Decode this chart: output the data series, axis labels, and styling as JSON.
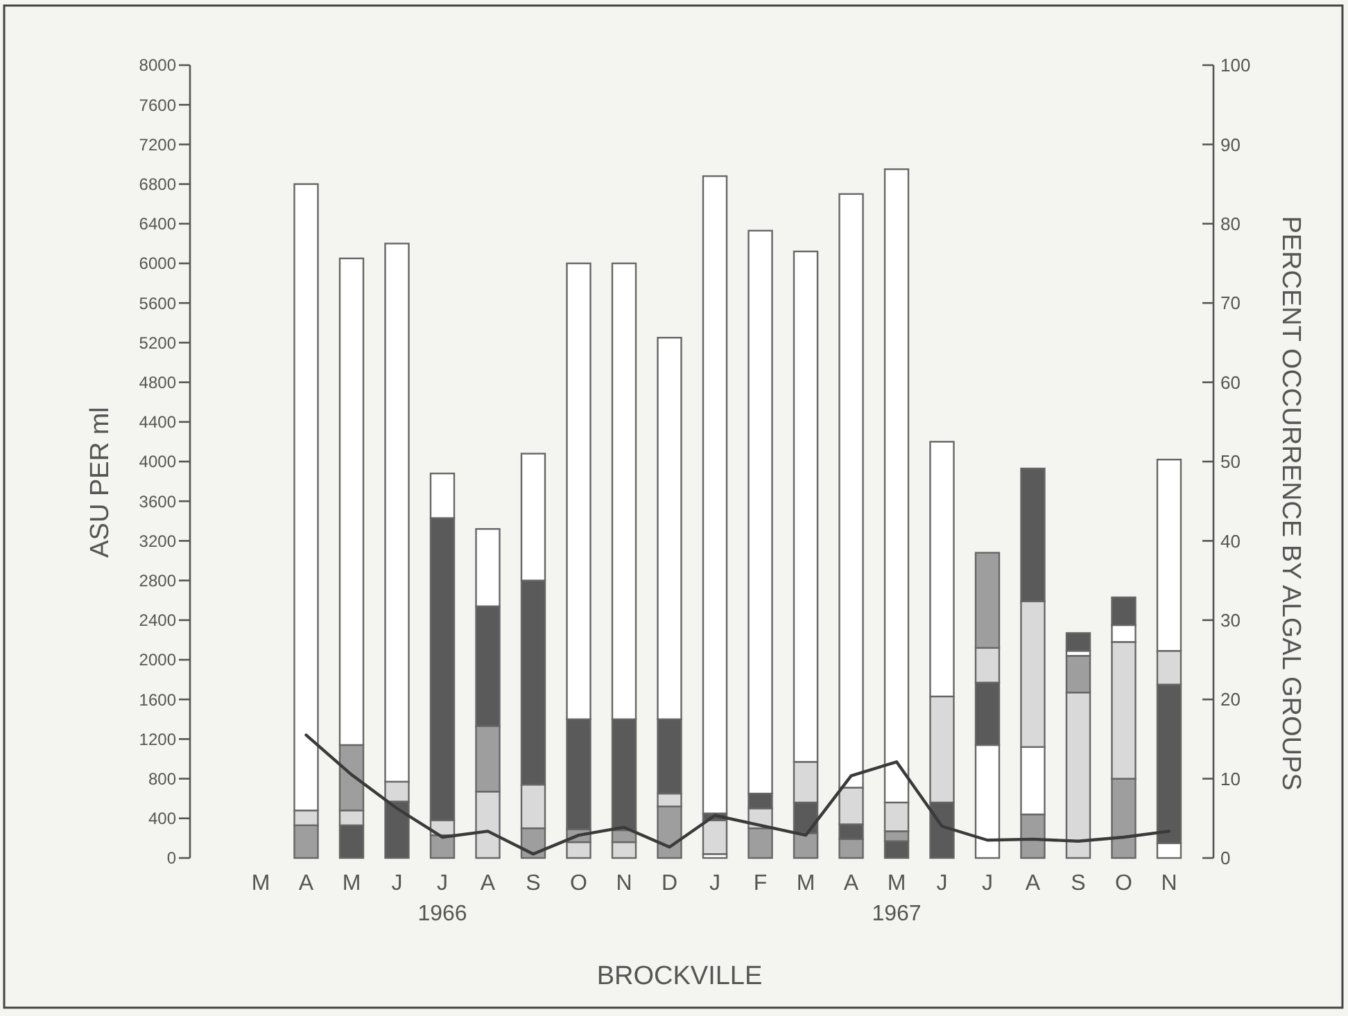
{
  "chart_data": {
    "type": "bar",
    "stacked": true,
    "xlabel": "BROCKVILLE",
    "ylabel": "ASU PER ml",
    "y2label": "PERCENT OCCURRENCE BY ALGAL GROUPS",
    "categories": [
      "M",
      "A",
      "M",
      "J",
      "J",
      "A",
      "S",
      "O",
      "N",
      "D",
      "J",
      "F",
      "M",
      "A",
      "M",
      "J",
      "J",
      "A",
      "S",
      "O",
      "N"
    ],
    "ylim": [
      0,
      8000
    ],
    "yticks": [
      0,
      400,
      800,
      1200,
      1600,
      2000,
      2400,
      2800,
      3200,
      3600,
      4000,
      4400,
      4800,
      5200,
      5600,
      6000,
      6400,
      6800,
      7200,
      7600,
      8000
    ],
    "y2lim": [
      0,
      100
    ],
    "y2ticks": [
      0,
      10,
      20,
      30,
      40,
      50,
      60,
      70,
      80,
      90,
      100
    ],
    "annotations": [
      "1966",
      "1967"
    ],
    "series": [
      {
        "values": [
          null,
          330,
          330,
          570,
          230,
          670,
          300,
          160,
          160,
          520,
          40,
          300,
          250,
          190,
          170,
          560,
          1140,
          440,
          1670,
          800,
          150
        ],
        "colors": [
          null,
          "#9e9e9e",
          "#5a5a5a",
          "#5a5a5a",
          "#9e9e9e",
          "#d9d9d9",
          "#9e9e9e",
          "#d9d9d9",
          "#d9d9d9",
          "#9e9e9e",
          "#ffffff",
          "#9e9e9e",
          "#9e9e9e",
          "#9e9e9e",
          "#5a5a5a",
          "#5a5a5a",
          "#ffffff",
          "#9e9e9e",
          "#d9d9d9",
          "#9e9e9e",
          "#ffffff"
        ]
      },
      {
        "values": [
          null,
          150,
          150,
          200,
          150,
          660,
          440,
          130,
          120,
          130,
          340,
          200,
          310,
          150,
          100,
          1070,
          630,
          680,
          370,
          1380,
          1600
        ],
        "colors": [
          null,
          "#d9d9d9",
          "#d9d9d9",
          "#d9d9d9",
          "#d9d9d9",
          "#9e9e9e",
          "#d9d9d9",
          "#9e9e9e",
          "#9e9e9e",
          "#d9d9d9",
          "#d9d9d9",
          "#d9d9d9",
          "#5a5a5a",
          "#5a5a5a",
          "#9e9e9e",
          "#d9d9d9",
          "#5a5a5a",
          "#ffffff",
          "#9e9e9e",
          "#d9d9d9",
          "#5a5a5a"
        ]
      },
      {
        "values": [
          null,
          6320,
          660,
          5430,
          3050,
          1210,
          2060,
          1110,
          1120,
          750,
          70,
          150,
          410,
          370,
          290,
          2570,
          350,
          1470,
          50,
          170,
          340
        ],
        "colors": [
          null,
          "#ffffff",
          "#9e9e9e",
          "#ffffff",
          "#5a5a5a",
          "#5a5a5a",
          "#5a5a5a",
          "#5a5a5a",
          "#5a5a5a",
          "#5a5a5a",
          "#5a5a5a",
          "#5a5a5a",
          "#d9d9d9",
          "#d9d9d9",
          "#d9d9d9",
          "#ffffff",
          "#d9d9d9",
          "#d9d9d9",
          "#ffffff",
          "#ffffff",
          "#d9d9d9"
        ]
      },
      {
        "values": [
          null,
          null,
          4910,
          null,
          450,
          780,
          1280,
          4600,
          4600,
          3850,
          6430,
          5680,
          5150,
          5990,
          6390,
          null,
          960,
          1340,
          180,
          280,
          1930
        ],
        "colors": [
          null,
          null,
          "#ffffff",
          null,
          "#ffffff",
          "#ffffff",
          "#ffffff",
          "#ffffff",
          "#ffffff",
          "#ffffff",
          "#ffffff",
          "#ffffff",
          "#ffffff",
          "#ffffff",
          "#ffffff",
          null,
          "#9e9e9e",
          "#5a5a5a",
          "#5a5a5a",
          "#5a5a5a",
          "#ffffff"
        ]
      },
      {
        "type": "line",
        "color": "#3a3a3a",
        "values": [
          null,
          1240,
          840,
          500,
          210,
          270,
          40,
          230,
          310,
          110,
          430,
          330,
          230,
          830,
          970,
          320,
          180,
          190,
          170,
          210,
          270
        ]
      }
    ]
  }
}
